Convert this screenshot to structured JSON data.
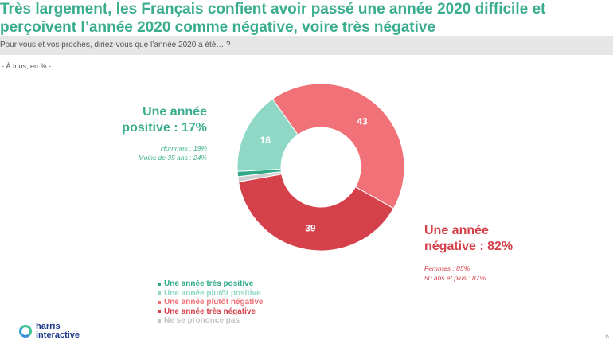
{
  "header": {
    "title": "Très largement, les Français confient avoir passé une année 2020 difficile et perçoivent l’année 2020 comme négative, voire très négative",
    "question": "Pour vous et vos proches, diriez-vous que l’année 2020 a été… ?",
    "base": "- À tous, en % -"
  },
  "callouts": {
    "positive": {
      "title": "Une année positive : 17%",
      "details": [
        "Hommes : 19%",
        "Moins de 35 ans : 24%"
      ]
    },
    "negative": {
      "title": "Une année négative : 82%",
      "details": [
        "Femmes : 85%",
        "50 ans et plus : 87%"
      ]
    }
  },
  "footer": {
    "logo_line1": "harris",
    "logo_line2": "interactive",
    "page_number": "6"
  },
  "chart_data": {
    "type": "pie",
    "variant": "donut",
    "title": "Pour vous et vos proches, diriez-vous que l’année 2020 a été… ?",
    "unit": "%",
    "legend_position": "bottom-left",
    "series": [
      {
        "name": "Une année plutôt négative",
        "value": 43,
        "color": "#f07177",
        "label": "43"
      },
      {
        "name": "Une année très négative",
        "value": 39,
        "color": "#d5414b",
        "label": "39"
      },
      {
        "name": "Ne se prononce pas",
        "value": 1,
        "color": "#cfcfcf",
        "label": ""
      },
      {
        "name": "Une année très positive",
        "value": 1,
        "color": "#2fa987",
        "label": ""
      },
      {
        "name": "Une année plutôt positive",
        "value": 16,
        "color": "#8fd8c6",
        "label": "16"
      }
    ],
    "legend": [
      {
        "name": "Une année très positive",
        "color": "#2fa987"
      },
      {
        "name": "Une année plutôt positive",
        "color": "#8fd8c6"
      },
      {
        "name": "Une année plutôt négative",
        "color": "#f07177"
      },
      {
        "name": "Une année très négative",
        "color": "#d5414b"
      },
      {
        "name": "Ne se prononce pas",
        "color": "#c4c4c4"
      }
    ]
  }
}
